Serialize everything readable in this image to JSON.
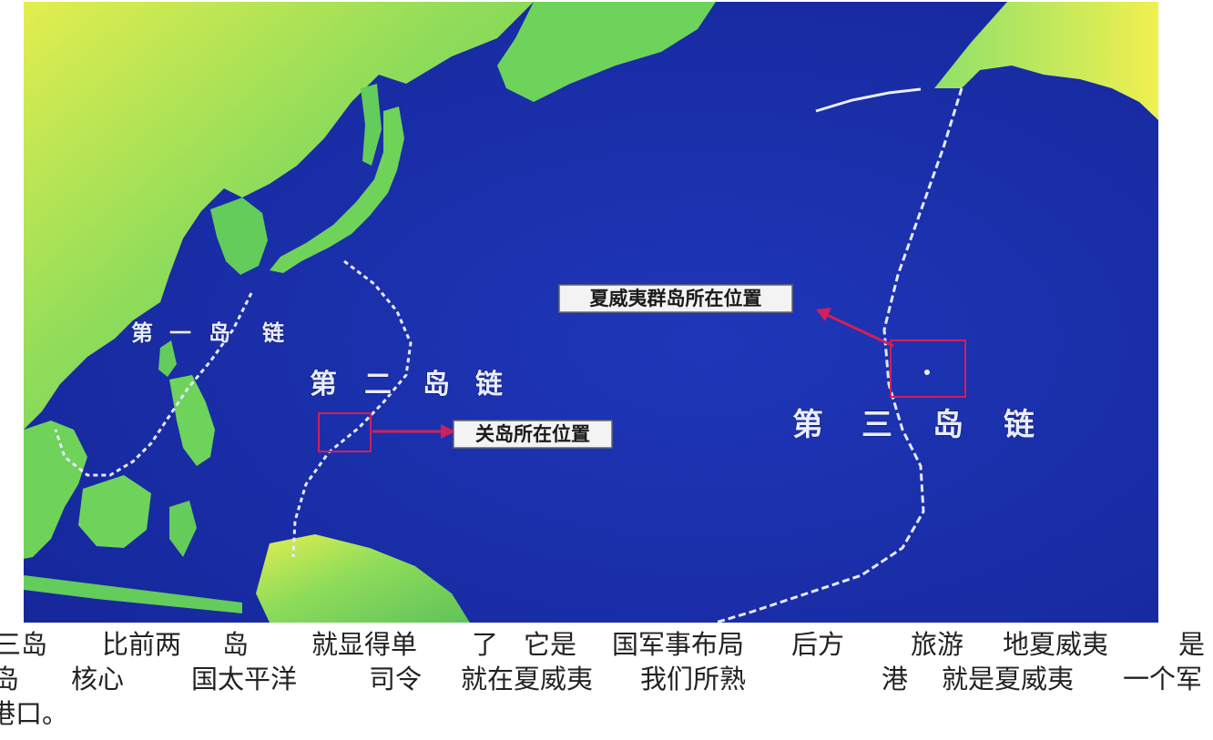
{
  "map": {
    "labels": {
      "first_chain": [
        "第",
        "一",
        "岛",
        "链"
      ],
      "second_chain": [
        "第",
        "二",
        "岛",
        "链"
      ],
      "third_chain": [
        "第",
        "三",
        "岛",
        "链"
      ]
    },
    "callouts": {
      "hawaii": "夏威夷群岛所在位置",
      "guam": "关岛所在位置"
    },
    "colors": {
      "ocean": "#1a2fa6",
      "land": "#6fcf55",
      "chain_line": "#e6e9ff",
      "marker": "#d0205a"
    }
  },
  "caption": {
    "lines": [
      [
        "三岛",
        "比前两",
        "岛",
        "就显得单",
        "了",
        "它是",
        "国军事布局",
        "后方",
        "旅游",
        "地夏威夷",
        "是"
      ],
      [
        "岛",
        "核心",
        "国太平洋",
        "司令",
        "就在夏威夷",
        "我们所熟",
        "港",
        "就是夏威夷",
        "一个军"
      ],
      [
        "港口。"
      ]
    ]
  }
}
